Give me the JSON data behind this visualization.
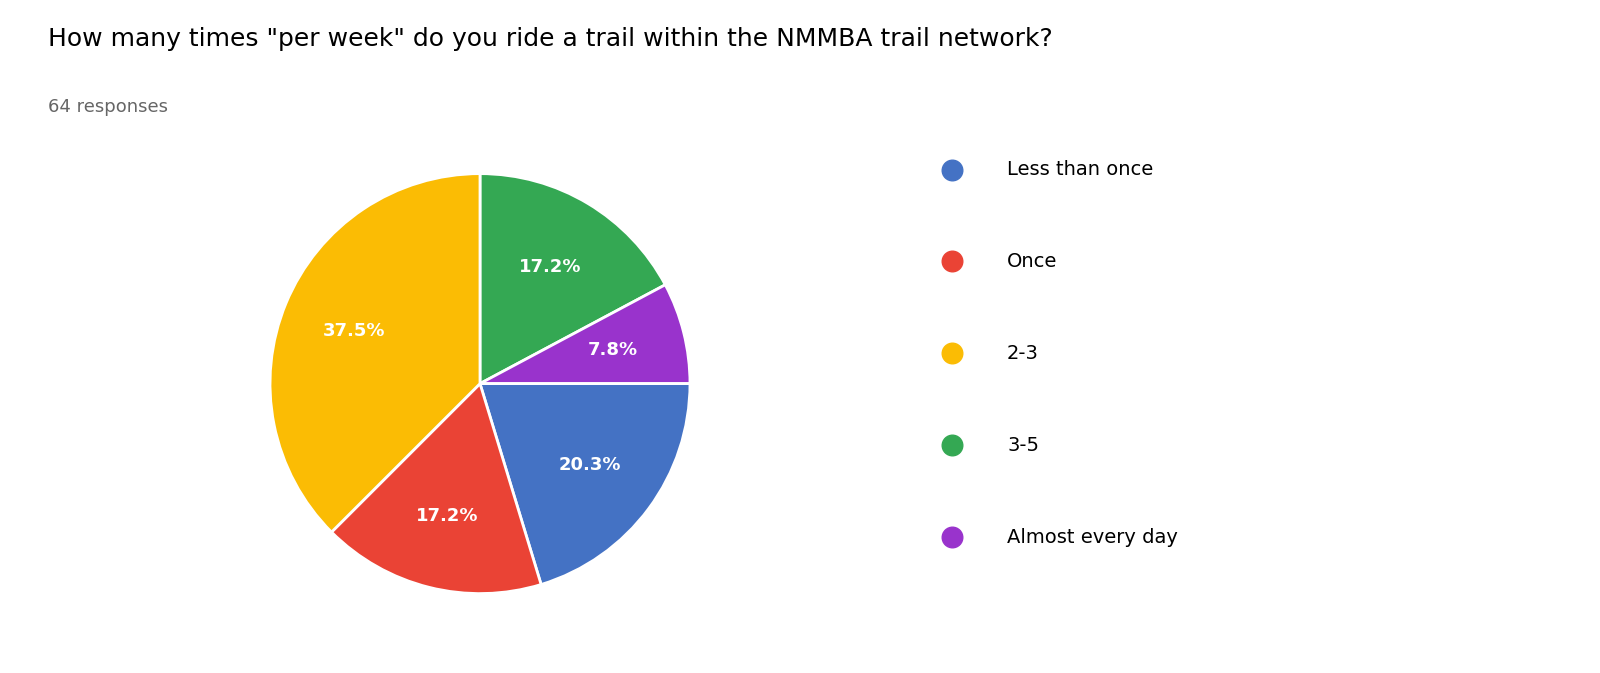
{
  "title": "How many times \"per week\" do you ride a trail within the NMMBA trail network?",
  "subtitle": "64 responses",
  "labels": [
    "Less than once",
    "Once",
    "2-3",
    "3-5",
    "Almost every day"
  ],
  "plot_order_labels": [
    "3-5",
    "Almost every day",
    "Less than once",
    "Once",
    "2-3"
  ],
  "plot_order_values": [
    17.2,
    7.8,
    20.3,
    17.2,
    37.5
  ],
  "plot_order_colors": [
    "#34A853",
    "#9933CC",
    "#4472C4",
    "#EA4335",
    "#FBBC04"
  ],
  "legend_colors": [
    "#4472C4",
    "#EA4335",
    "#FBBC04",
    "#34A853",
    "#9933CC"
  ],
  "pct_labels": [
    "17.2%",
    "7.8%",
    "20.3%",
    "17.2%",
    "37.5%"
  ],
  "title_fontsize": 18,
  "subtitle_fontsize": 13,
  "legend_fontsize": 14,
  "pct_fontsize": 13,
  "background_color": "#ffffff"
}
